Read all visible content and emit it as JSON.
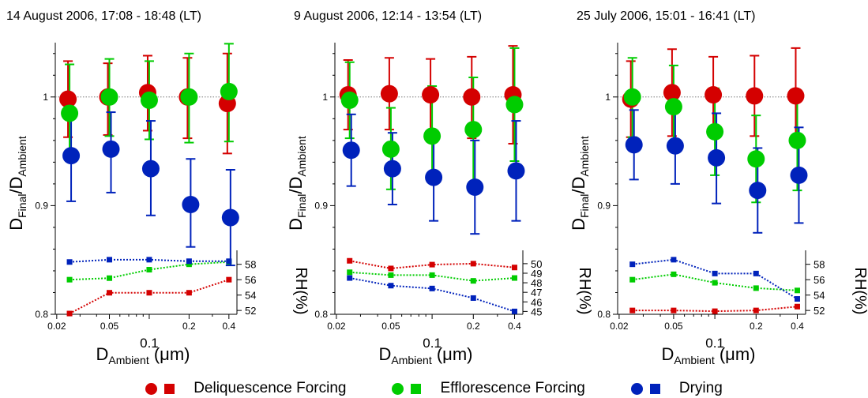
{
  "chart_data": {
    "type": "scatter",
    "x_axis_label": "D",
    "x_axis_label_sub": "Ambient",
    "x_axis_unit": " (μm)",
    "x_ticks": [
      "0.02",
      "0.05",
      "0.1",
      "0.2",
      "0.4"
    ],
    "x_scale": "log",
    "y_axis_label": "D",
    "y_axis_label_sub1": "Final",
    "y_axis_label_slash": "/D",
    "y_axis_label_sub2": "Ambient",
    "y_ticks": [
      "0.8",
      "0.9",
      "1"
    ],
    "reference_line_y": 1.0,
    "rh_axis_label": "RH(%)",
    "x": [
      0.025,
      0.05,
      0.1,
      0.2,
      0.4
    ],
    "series_names": [
      "Deliquescence Forcing",
      "Efflorescence Forcing",
      "Drying"
    ],
    "series_colors": [
      "#d40000",
      "#00cc00",
      "#0022bb"
    ],
    "legend": [
      {
        "label": "Deliquescence Forcing",
        "color": "#d40000"
      },
      {
        "label": "Efflorescence Forcing",
        "color": "#00cc00"
      },
      {
        "label": "Drying",
        "color": "#0022bb"
      }
    ],
    "panels": [
      {
        "title": "14 August 2006, 17:08 - 18:48 (LT)",
        "ylim": [
          0.8,
          1.05
        ],
        "rh_ticks": [
          52,
          54,
          56,
          58
        ],
        "rh_range": [
          51.5,
          59.2
        ],
        "ratio": [
          {
            "values": [
              0.998,
              1.0,
              1.004,
              1.0,
              0.994
            ],
            "err_lo": [
              0.035,
              0.035,
              0.035,
              0.038,
              0.046
            ],
            "err_hi": [
              0.035,
              0.031,
              0.034,
              0.036,
              0.046
            ]
          },
          {
            "values": [
              0.985,
              1.0,
              0.997,
              1.0,
              1.005
            ],
            "err_lo": [
              0.035,
              0.036,
              0.036,
              0.042,
              0.046
            ],
            "err_hi": [
              0.045,
              0.035,
              0.036,
              0.04,
              0.044
            ]
          },
          {
            "values": [
              0.946,
              0.952,
              0.934,
              0.901,
              0.889
            ],
            "err_lo": [
              0.042,
              0.04,
              0.043,
              0.039,
              0.044
            ],
            "err_hi": [
              0.04,
              0.034,
              0.044,
              0.042,
              0.044
            ]
          }
        ],
        "rh": [
          [
            51.6,
            54.3,
            54.3,
            54.3,
            56.0
          ],
          [
            56.0,
            56.2,
            57.3,
            58.0,
            58.3
          ],
          [
            58.3,
            58.6,
            58.6,
            58.4,
            58.4
          ]
        ]
      },
      {
        "title": "9 August 2006, 12:14 - 13:54 (LT)",
        "ylim": [
          0.8,
          1.05
        ],
        "rh_ticks": [
          45,
          46,
          47,
          48,
          49,
          50
        ],
        "rh_range": [
          44.7,
          50.9
        ],
        "ratio": [
          {
            "values": [
              1.002,
              1.003,
              1.002,
              1.0,
              1.002
            ],
            "err_lo": [
              0.032,
              0.033,
              0.034,
              0.038,
              0.045
            ],
            "err_hi": [
              0.032,
              0.033,
              0.033,
              0.037,
              0.045
            ]
          },
          {
            "values": [
              0.997,
              0.952,
              0.964,
              0.97,
              0.993
            ],
            "err_lo": [
              0.035,
              0.037,
              0.037,
              0.048,
              0.052
            ],
            "err_hi": [
              0.035,
              0.038,
              0.046,
              0.048,
              0.052
            ]
          },
          {
            "values": [
              0.951,
              0.934,
              0.926,
              0.917,
              0.932
            ],
            "err_lo": [
              0.033,
              0.033,
              0.04,
              0.043,
              0.046
            ],
            "err_hi": [
              0.033,
              0.033,
              0.04,
              0.043,
              0.046
            ]
          }
        ],
        "rh": [
          [
            50.3,
            49.5,
            49.9,
            50.0,
            49.6
          ],
          [
            49.1,
            48.8,
            48.8,
            48.2,
            48.5
          ],
          [
            48.5,
            47.7,
            47.4,
            46.4,
            45.0
          ]
        ]
      },
      {
        "title": "25 July 2006, 15:01 - 16:41 (LT)",
        "ylim": [
          0.8,
          1.05
        ],
        "rh_ticks": [
          52,
          54,
          56,
          58
        ],
        "rh_range": [
          51.5,
          59.2
        ],
        "ratio": [
          {
            "values": [
              0.998,
              1.004,
              1.002,
              1.001,
              1.001
            ],
            "err_lo": [
              0.035,
              0.04,
              0.035,
              0.037,
              0.044
            ],
            "err_hi": [
              0.035,
              0.04,
              0.035,
              0.037,
              0.044
            ]
          },
          {
            "values": [
              1.0,
              0.991,
              0.968,
              0.943,
              0.96
            ],
            "err_lo": [
              0.037,
              0.038,
              0.04,
              0.04,
              0.046
            ],
            "err_hi": [
              0.036,
              0.038,
              0.04,
              0.04,
              0.046
            ]
          },
          {
            "values": [
              0.956,
              0.955,
              0.944,
              0.914,
              0.928
            ],
            "err_lo": [
              0.032,
              0.035,
              0.042,
              0.039,
              0.044
            ],
            "err_hi": [
              0.032,
              0.035,
              0.041,
              0.039,
              0.044
            ]
          }
        ],
        "rh": [
          [
            52.0,
            52.0,
            51.9,
            52.0,
            52.5
          ],
          [
            56.0,
            56.7,
            55.6,
            54.9,
            54.6
          ],
          [
            58.0,
            58.6,
            56.8,
            56.8,
            53.5
          ]
        ]
      }
    ]
  }
}
